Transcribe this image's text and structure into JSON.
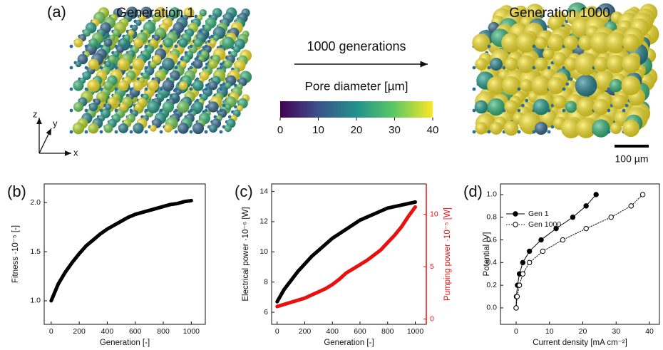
{
  "panel_a": {
    "label": "(a)",
    "left_title": "Generation 1",
    "right_title": "Generation 1000",
    "arrow_label": "1000 generations",
    "colorbar": {
      "title": "Pore diameter [µm]",
      "lim": [
        0,
        40
      ],
      "ticks": [
        0,
        10,
        20,
        30,
        40
      ]
    },
    "scale_bar": "100 µm",
    "axes": [
      "z",
      "y",
      "x"
    ]
  },
  "chart_data": [
    {
      "type": "line",
      "label": "(b)",
      "x_label": "Generation [-]",
      "y_label": "Fitness ·10⁻⁵ [-]",
      "x": [
        0,
        50,
        100,
        150,
        200,
        250,
        300,
        350,
        400,
        450,
        500,
        550,
        600,
        650,
        700,
        750,
        800,
        850,
        900,
        950,
        1000
      ],
      "series": [
        {
          "color": "#000000",
          "values": [
            1.0,
            1.17,
            1.29,
            1.39,
            1.48,
            1.56,
            1.62,
            1.68,
            1.73,
            1.77,
            1.81,
            1.85,
            1.88,
            1.9,
            1.92,
            1.94,
            1.96,
            1.98,
            1.99,
            2.01,
            2.02
          ]
        }
      ],
      "xlim": [
        -50,
        1100
      ],
      "ylim": [
        0.76,
        2.19
      ],
      "xticks": [
        0,
        200,
        400,
        600,
        800,
        1000
      ],
      "yticks": [
        {
          "value": 1.0,
          "label": "1.0"
        },
        {
          "value": 1.5,
          "label": "1.5"
        },
        {
          "value": 2.0,
          "label": "2.0"
        }
      ]
    },
    {
      "type": "line",
      "label": "(c)",
      "x_label": "Generation [-]",
      "y_label": "Electrical power ·10⁻⁶ [W]",
      "y2_label": "Pumping power ·10⁻⁵ [W]",
      "x": [
        0,
        50,
        100,
        150,
        200,
        250,
        300,
        350,
        400,
        450,
        500,
        550,
        600,
        650,
        700,
        750,
        800,
        850,
        900,
        950,
        1000
      ],
      "series": [
        {
          "color": "#000000",
          "values": [
            6.7,
            7.5,
            8.1,
            8.7,
            9.2,
            9.7,
            10.1,
            10.5,
            10.9,
            11.2,
            11.5,
            11.8,
            12.1,
            12.3,
            12.5,
            12.7,
            12.9,
            13.0,
            13.1,
            13.2,
            13.3
          ]
        },
        {
          "color": "#e8110f",
          "axis": "y2",
          "values": [
            1.2,
            1.4,
            1.6,
            1.8,
            2.0,
            2.3,
            2.6,
            2.9,
            3.3,
            3.8,
            4.4,
            4.8,
            5.2,
            5.6,
            6.1,
            6.6,
            7.3,
            8.0,
            8.8,
            9.8,
            10.7
          ]
        }
      ],
      "xlim": [
        -40,
        1080
      ],
      "ylim": [
        5.2,
        14.5
      ],
      "y2lim": [
        -0.5,
        12.9
      ],
      "xticks": [
        0,
        200,
        400,
        600,
        800,
        1000
      ],
      "yticks": [
        6,
        8,
        10,
        12,
        14
      ],
      "y2ticks": [
        0,
        5,
        10
      ]
    },
    {
      "type": "line",
      "label": "(d)",
      "x_label": "Current density [mA cm⁻²]",
      "y_label": "Potential [V]",
      "series": [
        {
          "name": "Gen 1",
          "color": "#000000",
          "style": "solid",
          "filled": true,
          "x": [
            0,
            0.1,
            0.4,
            1,
            2,
            4,
            7.5,
            12,
            17,
            21,
            24
          ],
          "values": [
            0.0,
            0.1,
            0.2,
            0.3,
            0.4,
            0.5,
            0.6,
            0.7,
            0.8,
            0.9,
            1.0
          ]
        },
        {
          "name": "Gen 1000",
          "color": "#000000",
          "style": "dotted",
          "filled": false,
          "x": [
            0,
            0.3,
            1,
            2,
            4,
            8,
            14,
            21,
            28.5,
            34.5,
            38
          ],
          "values": [
            0.0,
            0.1,
            0.2,
            0.3,
            0.4,
            0.5,
            0.6,
            0.7,
            0.8,
            0.9,
            1.0
          ]
        }
      ],
      "legend": "upper left",
      "xlim": [
        -4.7,
        43
      ],
      "ylim": [
        -0.145,
        1.094
      ],
      "xticks": [
        0,
        10,
        20,
        30,
        40
      ],
      "yticks": [
        {
          "value": 0.0,
          "label": "0.0"
        },
        {
          "value": 0.2,
          "label": "0.2"
        },
        {
          "value": 0.4,
          "label": "0.4"
        },
        {
          "value": 0.6,
          "label": "0.6"
        },
        {
          "value": 0.8,
          "label": "0.8"
        },
        {
          "value": 1.0,
          "label": "1.0"
        }
      ]
    }
  ]
}
